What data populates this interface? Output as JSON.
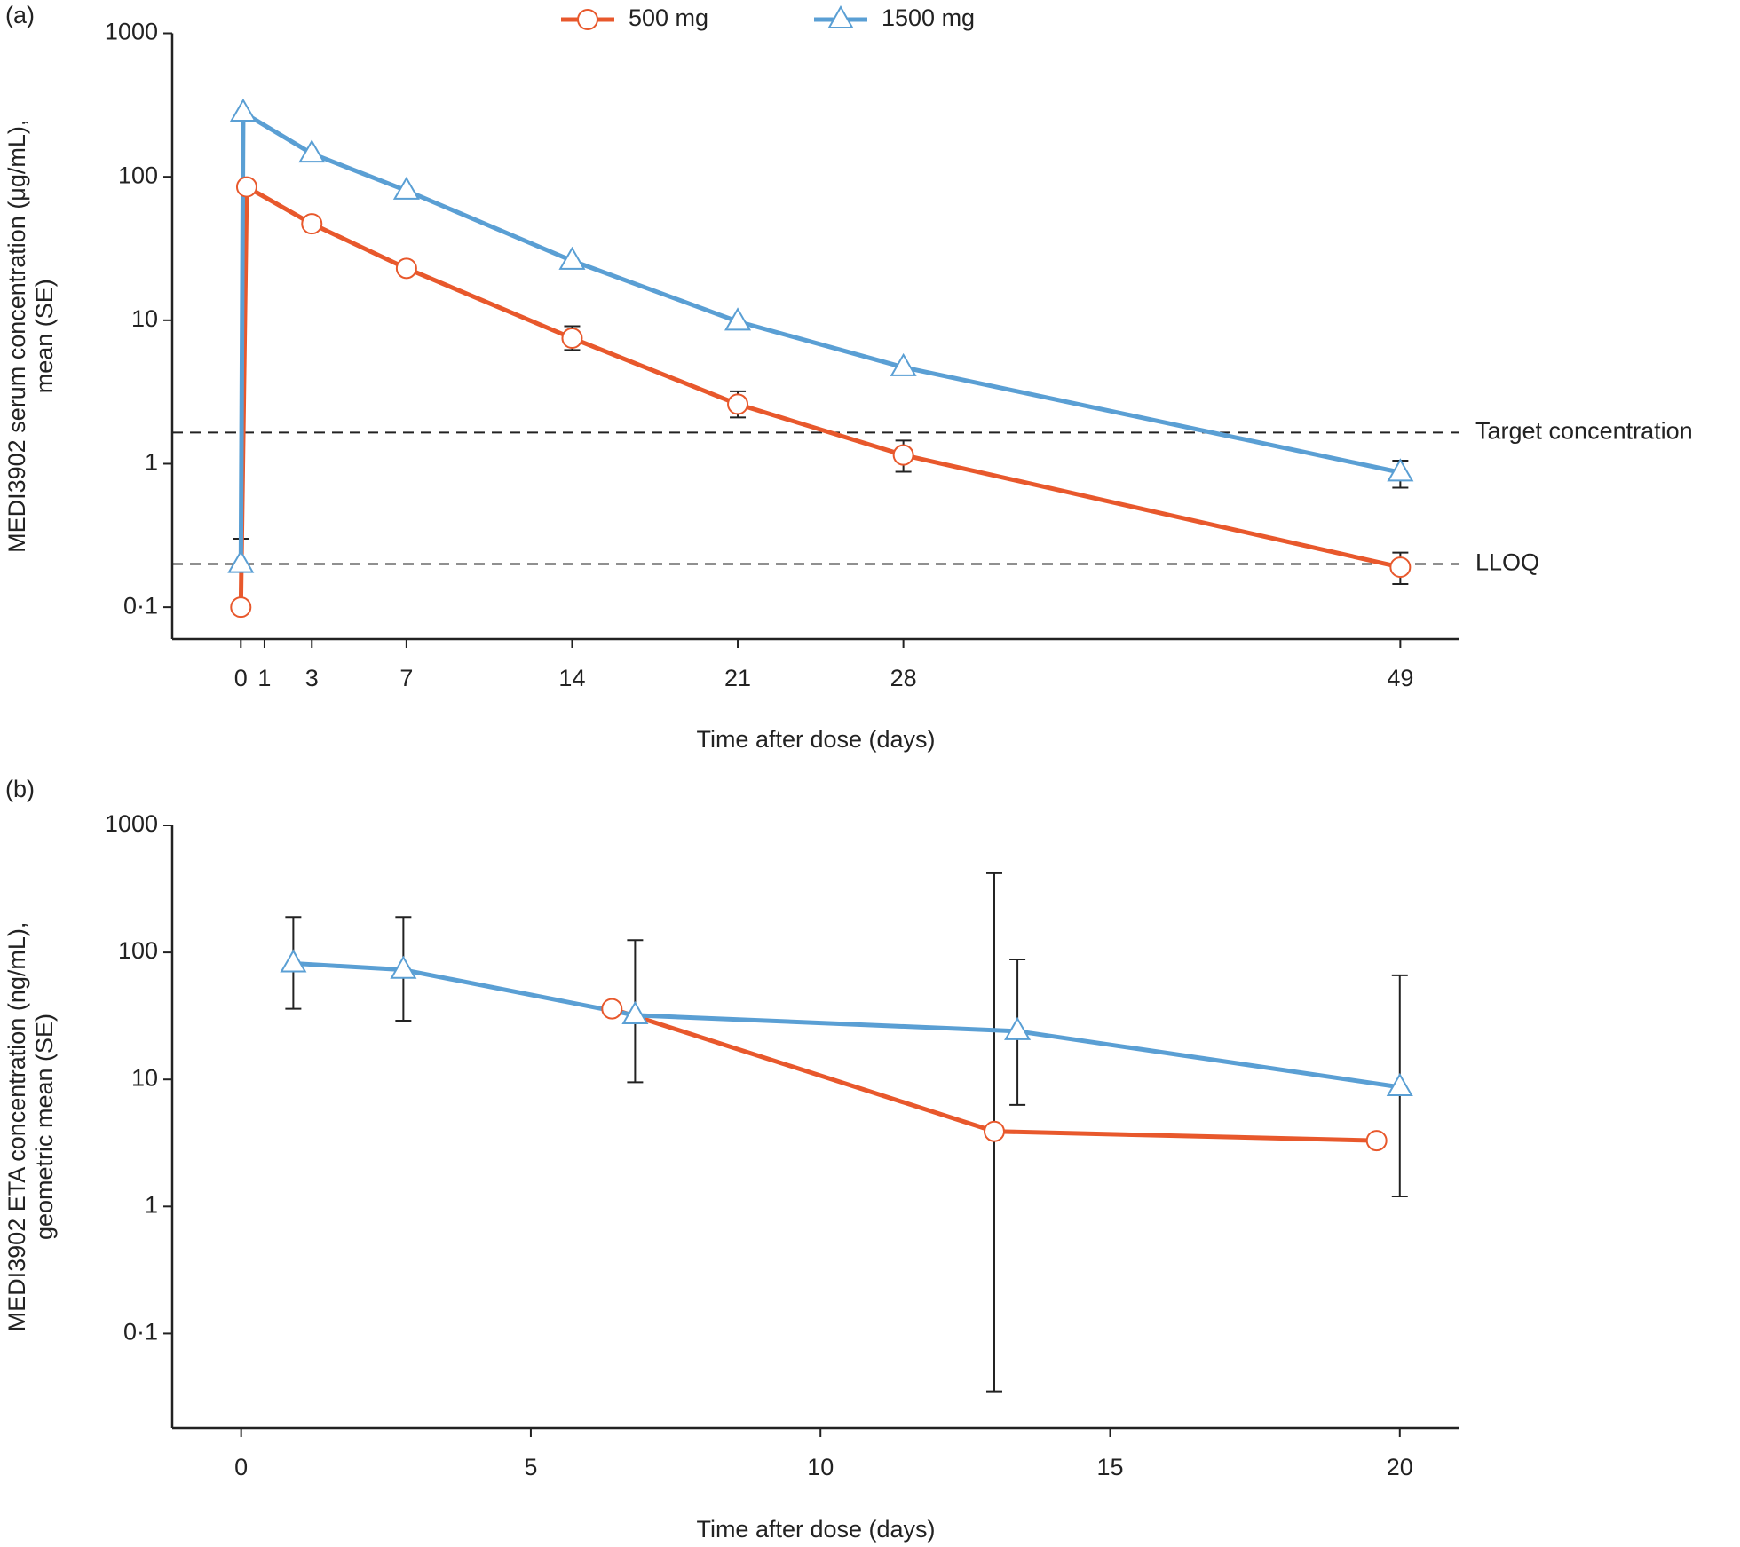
{
  "chart_data": [
    {
      "type": "line",
      "label": "(a)",
      "log_y": true,
      "ylabel": [
        "MEDI3902 serum concentration (μg/mL),",
        "mean (SE)"
      ],
      "xlabel": "Time after dose (days)",
      "xlim": [
        -2.9,
        51.5
      ],
      "xticks": [
        0,
        1,
        3,
        7,
        14,
        21,
        28,
        49
      ],
      "ylim": [
        0.06,
        1000
      ],
      "yticks": [
        {
          "value": 0.1,
          "label": "0·1"
        },
        1,
        10,
        100,
        1000
      ],
      "hlines": [
        {
          "value": 1.65,
          "label": "Target concentration"
        },
        {
          "value": 0.2,
          "label": "LLOQ"
        }
      ],
      "series": [
        {
          "name": "500 mg",
          "color": "#e8582c",
          "marker": "circle",
          "x": [
            0,
            0.25,
            3,
            7,
            14,
            21,
            28,
            49
          ],
          "values": [
            0.1,
            85,
            47,
            23,
            7.5,
            2.6,
            1.15,
            0.19
          ],
          "error_low": [
            null,
            null,
            null,
            null,
            6.2,
            2.1,
            0.88,
            0.145
          ],
          "error_high": [
            null,
            null,
            null,
            null,
            9.1,
            3.2,
            1.45,
            0.24
          ]
        },
        {
          "name": "1500 mg",
          "color": "#5a9fd4",
          "marker": "triangle",
          "x": [
            0,
            0.1,
            3,
            7,
            14,
            21,
            28,
            49
          ],
          "values": [
            0.2,
            280,
            145,
            80,
            26,
            9.8,
            4.7,
            0.87
          ],
          "error_low": [
            0.105,
            null,
            null,
            null,
            null,
            null,
            null,
            0.68
          ],
          "error_high": [
            0.3,
            null,
            null,
            null,
            null,
            null,
            null,
            1.05
          ]
        }
      ]
    },
    {
      "type": "line",
      "label": "(b)",
      "log_y": true,
      "ylabel": [
        "MEDI3902 ETA concentration (ng/mL),",
        "geometric mean (SE)"
      ],
      "xlabel": "Time after dose (days)",
      "xlim": [
        -1.19,
        21.03
      ],
      "xticks": [
        0,
        5,
        10,
        15,
        20
      ],
      "ylim": [
        0.018,
        1000
      ],
      "yticks": [
        {
          "value": 0.1,
          "label": "0·1"
        },
        1,
        10,
        100,
        1000
      ],
      "series": [
        {
          "color": "#e8582c",
          "marker": "circle",
          "x": [
            6.4,
            13.0,
            19.6
          ],
          "values": [
            36,
            3.9,
            3.3
          ],
          "error_low": [
            null,
            0.035,
            null
          ],
          "error_high": [
            null,
            420,
            null
          ]
        },
        {
          "color": "#5a9fd4",
          "marker": "triangle",
          "x": [
            0.9,
            2.8,
            6.8,
            13.4,
            20
          ],
          "values": [
            82,
            73,
            32,
            24,
            8.7
          ],
          "error_low": [
            36,
            29,
            9.5,
            6.3,
            1.2
          ],
          "error_high": [
            190,
            190,
            125,
            88,
            66
          ]
        }
      ]
    }
  ]
}
